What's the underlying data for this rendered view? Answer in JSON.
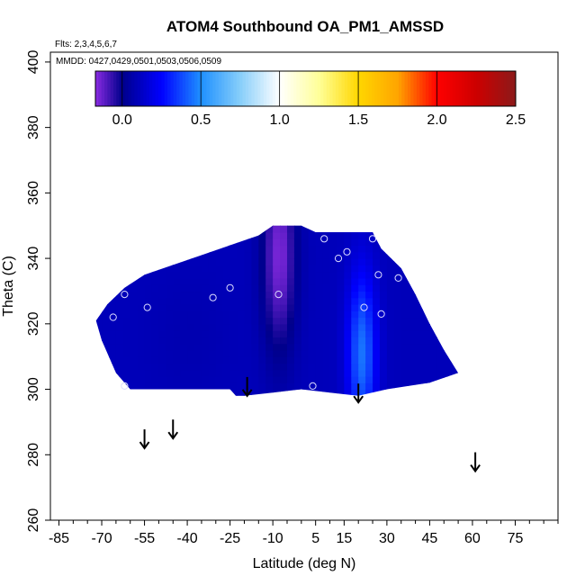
{
  "chart_data": {
    "type": "heatmap",
    "title": "ATOM4 Southbound OA_PM1_AMSSD",
    "flights_label": "Flts: 2,3,4,5,6,7",
    "mmdd_label": "MMDD: 0427,0429,0501,0503,0506,0509",
    "xlabel": "Latitude (deg N)",
    "ylabel": "Theta (C)",
    "xlim": [
      -88,
      90
    ],
    "ylim": [
      260,
      403
    ],
    "x_ticks": [
      -85,
      -70,
      -55,
      -40,
      -25,
      -10,
      5,
      15,
      30,
      45,
      60,
      75
    ],
    "y_ticks": [
      260,
      280,
      300,
      320,
      340,
      360,
      380,
      400
    ],
    "colorbar": {
      "ticks": [
        "0.0",
        "0.5",
        "1.0",
        "1.5",
        "2.0",
        "2.5"
      ],
      "tick_values": [
        0,
        0.5,
        1.0,
        1.5,
        2.0,
        2.5
      ],
      "range": [
        -0.17,
        2.5
      ],
      "stops": [
        {
          "value": -0.17,
          "color": "#8a2be2"
        },
        {
          "value": 0.0,
          "color": "#00008b"
        },
        {
          "value": 0.25,
          "color": "#0000ff"
        },
        {
          "value": 0.5,
          "color": "#1e90ff"
        },
        {
          "value": 0.75,
          "color": "#87cefa"
        },
        {
          "value": 1.0,
          "color": "#ffffff"
        },
        {
          "value": 1.25,
          "color": "#ffff99"
        },
        {
          "value": 1.5,
          "color": "#ffd700"
        },
        {
          "value": 1.75,
          "color": "#ffa500"
        },
        {
          "value": 2.0,
          "color": "#ff0000"
        },
        {
          "value": 2.25,
          "color": "#cd0000"
        },
        {
          "value": 2.5,
          "color": "#8b1a1a"
        }
      ]
    },
    "field_boundary": [
      [
        -72,
        321
      ],
      [
        -68,
        326
      ],
      [
        -62,
        331
      ],
      [
        -55,
        335
      ],
      [
        -45,
        338
      ],
      [
        -35,
        341
      ],
      [
        -25,
        344
      ],
      [
        -15,
        347
      ],
      [
        -10,
        350
      ],
      [
        0,
        350
      ],
      [
        5,
        348
      ],
      [
        25,
        348
      ],
      [
        28,
        343
      ],
      [
        35,
        337
      ],
      [
        40,
        329
      ],
      [
        45,
        320
      ],
      [
        50,
        312
      ],
      [
        55,
        305
      ],
      [
        45,
        302
      ],
      [
        30,
        300
      ],
      [
        20,
        298
      ],
      [
        10,
        299
      ],
      [
        0,
        300
      ],
      [
        -10,
        299
      ],
      [
        -20,
        298
      ],
      [
        -23,
        298
      ],
      [
        -25,
        300
      ],
      [
        -60,
        300
      ],
      [
        -65,
        305
      ],
      [
        -70,
        315
      ]
    ],
    "field_base_value": 0.1,
    "field_features": [
      {
        "x": -9,
        "y": 340,
        "sx": 6,
        "sy": 30,
        "value": -0.15
      },
      {
        "x": 20,
        "y": 310,
        "sx": 5,
        "sy": 25,
        "value": 0.45
      },
      {
        "x": -40,
        "y": 315,
        "sx": 15,
        "sy": 20,
        "value": 0.08
      }
    ],
    "observations": [
      {
        "lat": 8,
        "theta": 346
      },
      {
        "lat": 16,
        "theta": 342
      },
      {
        "lat": 25,
        "theta": 346
      },
      {
        "lat": 13,
        "theta": 340
      },
      {
        "lat": 27,
        "theta": 335
      },
      {
        "lat": 34,
        "theta": 334
      },
      {
        "lat": -8,
        "theta": 329
      },
      {
        "lat": -25,
        "theta": 331
      },
      {
        "lat": -31,
        "theta": 328
      },
      {
        "lat": -54,
        "theta": 325
      },
      {
        "lat": -62,
        "theta": 329
      },
      {
        "lat": -66,
        "theta": 322
      },
      {
        "lat": 22,
        "theta": 325
      },
      {
        "lat": 28,
        "theta": 323
      },
      {
        "lat": 4,
        "theta": 301
      },
      {
        "lat": -62,
        "theta": 301
      }
    ],
    "arrows": [
      {
        "lat": -55,
        "theta": 285
      },
      {
        "lat": -45,
        "theta": 288
      },
      {
        "lat": -19,
        "theta": 301
      },
      {
        "lat": 20,
        "theta": 299
      },
      {
        "lat": 61,
        "theta": 278
      }
    ]
  }
}
